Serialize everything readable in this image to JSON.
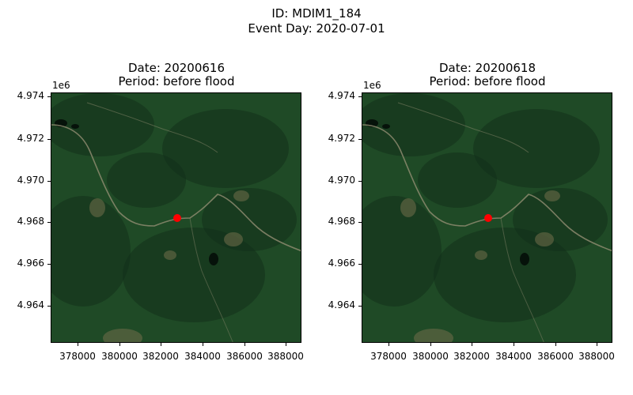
{
  "figure": {
    "title_line1": "ID: MDIM1_184",
    "title_line2": "Event Day: 2020-07-01"
  },
  "panels": [
    {
      "date_label": "Date: 20200616",
      "period_label": "Period: before flood"
    },
    {
      "date_label": "Date: 20200618",
      "period_label": "Period: before flood"
    }
  ],
  "axes": {
    "y_offset_label": "1e6",
    "y_ticks": [
      "4.974",
      "4.972",
      "4.970",
      "4.968",
      "4.966",
      "4.964"
    ],
    "x_ticks": [
      "378000",
      "380000",
      "382000",
      "384000",
      "386000",
      "388000"
    ]
  },
  "marker": {
    "color": "#ff0000",
    "description": "event location"
  },
  "colors": {
    "forest_dark": "#12301a",
    "forest_mid": "#1f4a26",
    "road": "#8c8a6e",
    "clearing": "#6b6a48"
  }
}
